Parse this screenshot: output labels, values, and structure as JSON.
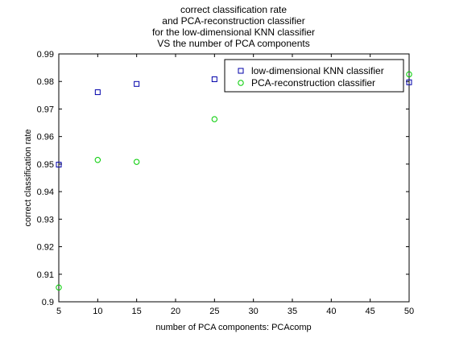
{
  "chart_data": {
    "type": "scatter",
    "title_lines": [
      "correct classification rate",
      "and PCA-reconstruction classifier",
      "for the low-dimensional KNN classifier",
      "VS the number of PCA components"
    ],
    "xlabel": "number of PCA components: PCAcomp",
    "ylabel": "correct classification rate",
    "xlim": [
      5,
      50
    ],
    "ylim": [
      0.9,
      0.99
    ],
    "x_ticks": [
      "5",
      "10",
      "15",
      "20",
      "25",
      "30",
      "35",
      "40",
      "45",
      "50"
    ],
    "y_ticks": [
      "0.9",
      "0.91",
      "0.92",
      "0.93",
      "0.94",
      "0.95",
      "0.96",
      "0.97",
      "0.98",
      "0.99"
    ],
    "grid": false,
    "legend_position": "top-right",
    "series": [
      {
        "name": "low-dimensional KNN classifier",
        "marker": "square",
        "color": "#0000aa",
        "x": [
          5,
          10,
          15,
          25,
          50
        ],
        "y": [
          0.9498,
          0.9761,
          0.9791,
          0.9808,
          0.9797
        ]
      },
      {
        "name": "PCA-reconstruction classifier",
        "marker": "circle",
        "color": "#00cc00",
        "x": [
          5,
          10,
          15,
          25,
          50
        ],
        "y": [
          0.9052,
          0.9515,
          0.9508,
          0.9663,
          0.9826
        ]
      }
    ]
  }
}
